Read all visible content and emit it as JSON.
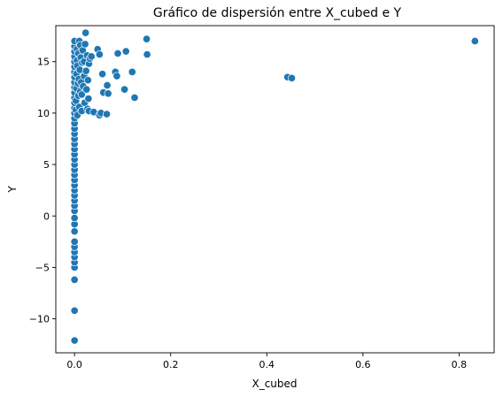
{
  "chart_data": {
    "type": "scatter",
    "title": "Gráfico de dispersión entre X_cubed e Y",
    "xlabel": "X_cubed",
    "ylabel": "Y",
    "xlim": [
      -0.039,
      0.873
    ],
    "ylim": [
      -13.3,
      18.5
    ],
    "xticks": [
      0.0,
      0.2,
      0.4,
      0.6,
      0.8
    ],
    "xtick_labels": [
      "0.0",
      "0.2",
      "0.4",
      "0.6",
      "0.8"
    ],
    "yticks": [
      -10,
      -5,
      0,
      5,
      10,
      15
    ],
    "ytick_labels": [
      "−10",
      "−5",
      "0",
      "5",
      "10",
      "15"
    ],
    "grid": false,
    "legend": "none",
    "color": "#1f77b4",
    "points": [
      {
        "x": 0.0,
        "y": -12.1
      },
      {
        "x": 0.0,
        "y": -9.2
      },
      {
        "x": 0.0,
        "y": -6.2
      },
      {
        "x": 0.0,
        "y": -5.0
      },
      {
        "x": 0.0,
        "y": -4.5
      },
      {
        "x": 0.0,
        "y": -4.0
      },
      {
        "x": 0.0,
        "y": -3.5
      },
      {
        "x": 0.0,
        "y": -3.0
      },
      {
        "x": 0.0,
        "y": -2.5
      },
      {
        "x": 0.0,
        "y": -1.5
      },
      {
        "x": 0.0,
        "y": -0.8
      },
      {
        "x": 0.0,
        "y": -0.2
      },
      {
        "x": 0.0,
        "y": 0.5
      },
      {
        "x": 0.0,
        "y": 1.0
      },
      {
        "x": 0.0,
        "y": 1.5
      },
      {
        "x": 0.0,
        "y": 2.0
      },
      {
        "x": 0.0,
        "y": 2.5
      },
      {
        "x": 0.0,
        "y": 3.0
      },
      {
        "x": 0.0,
        "y": 3.5
      },
      {
        "x": 0.0,
        "y": 4.0
      },
      {
        "x": 0.0,
        "y": 4.5
      },
      {
        "x": 0.0,
        "y": 5.0
      },
      {
        "x": 0.0,
        "y": 5.5
      },
      {
        "x": 0.0,
        "y": 6.0
      },
      {
        "x": 0.0,
        "y": 6.5
      },
      {
        "x": 0.0,
        "y": 7.0
      },
      {
        "x": 0.0,
        "y": 7.5
      },
      {
        "x": 0.0,
        "y": 8.0
      },
      {
        "x": 0.0,
        "y": 8.5
      },
      {
        "x": 0.0,
        "y": 9.0
      },
      {
        "x": 0.0,
        "y": 9.5
      },
      {
        "x": 0.0,
        "y": 10.0
      },
      {
        "x": 0.0,
        "y": 10.5
      },
      {
        "x": 0.0,
        "y": 11.0
      },
      {
        "x": 0.0,
        "y": 11.5
      },
      {
        "x": 0.0,
        "y": 12.0
      },
      {
        "x": 0.0,
        "y": 12.5
      },
      {
        "x": 0.0,
        "y": 13.0
      },
      {
        "x": 0.0,
        "y": 13.5
      },
      {
        "x": 0.0,
        "y": 14.0
      },
      {
        "x": 0.0,
        "y": 14.5
      },
      {
        "x": 0.0,
        "y": 15.0
      },
      {
        "x": 0.0,
        "y": 15.5
      },
      {
        "x": 0.0,
        "y": 16.0
      },
      {
        "x": 0.0,
        "y": 16.5
      },
      {
        "x": 0.0,
        "y": 17.0
      },
      {
        "x": 0.003,
        "y": 10.3
      },
      {
        "x": 0.003,
        "y": 11.2
      },
      {
        "x": 0.004,
        "y": 12.4
      },
      {
        "x": 0.004,
        "y": 13.8
      },
      {
        "x": 0.005,
        "y": 15.1
      },
      {
        "x": 0.005,
        "y": 16.2
      },
      {
        "x": 0.006,
        "y": 9.8
      },
      {
        "x": 0.006,
        "y": 14.6
      },
      {
        "x": 0.007,
        "y": 12.9
      },
      {
        "x": 0.008,
        "y": 15.8
      },
      {
        "x": 0.008,
        "y": 11.7
      },
      {
        "x": 0.009,
        "y": 13.3
      },
      {
        "x": 0.01,
        "y": 17.0
      },
      {
        "x": 0.01,
        "y": 10.6
      },
      {
        "x": 0.011,
        "y": 14.2
      },
      {
        "x": 0.012,
        "y": 12.1
      },
      {
        "x": 0.012,
        "y": 16.6
      },
      {
        "x": 0.013,
        "y": 15.4
      },
      {
        "x": 0.014,
        "y": 13.0
      },
      {
        "x": 0.015,
        "y": 10.2
      },
      {
        "x": 0.015,
        "y": 11.8
      },
      {
        "x": 0.016,
        "y": 14.9
      },
      {
        "x": 0.017,
        "y": 16.1
      },
      {
        "x": 0.018,
        "y": 12.6
      },
      {
        "x": 0.02,
        "y": 13.6
      },
      {
        "x": 0.02,
        "y": 15.0
      },
      {
        "x": 0.021,
        "y": 11.0
      },
      {
        "x": 0.022,
        "y": 16.7
      },
      {
        "x": 0.023,
        "y": 17.8
      },
      {
        "x": 0.024,
        "y": 14.1
      },
      {
        "x": 0.025,
        "y": 12.3
      },
      {
        "x": 0.026,
        "y": 15.6
      },
      {
        "x": 0.027,
        "y": 10.4
      },
      {
        "x": 0.028,
        "y": 13.2
      },
      {
        "x": 0.029,
        "y": 11.4
      },
      {
        "x": 0.03,
        "y": 10.2
      },
      {
        "x": 0.03,
        "y": 14.8
      },
      {
        "x": 0.032,
        "y": 15.3
      },
      {
        "x": 0.035,
        "y": 15.5
      },
      {
        "x": 0.04,
        "y": 10.1
      },
      {
        "x": 0.048,
        "y": 16.2
      },
      {
        "x": 0.052,
        "y": 15.7
      },
      {
        "x": 0.052,
        "y": 9.8
      },
      {
        "x": 0.055,
        "y": 10.0
      },
      {
        "x": 0.058,
        "y": 13.8
      },
      {
        "x": 0.06,
        "y": 12.0
      },
      {
        "x": 0.067,
        "y": 9.9
      },
      {
        "x": 0.068,
        "y": 12.7
      },
      {
        "x": 0.07,
        "y": 11.9
      },
      {
        "x": 0.085,
        "y": 14.0
      },
      {
        "x": 0.088,
        "y": 13.6
      },
      {
        "x": 0.09,
        "y": 15.8
      },
      {
        "x": 0.104,
        "y": 12.3
      },
      {
        "x": 0.107,
        "y": 16.0
      },
      {
        "x": 0.12,
        "y": 14.0
      },
      {
        "x": 0.125,
        "y": 11.5
      },
      {
        "x": 0.15,
        "y": 17.2
      },
      {
        "x": 0.151,
        "y": 15.7
      },
      {
        "x": 0.443,
        "y": 13.5
      },
      {
        "x": 0.452,
        "y": 13.4
      },
      {
        "x": 0.833,
        "y": 17.0
      }
    ]
  }
}
